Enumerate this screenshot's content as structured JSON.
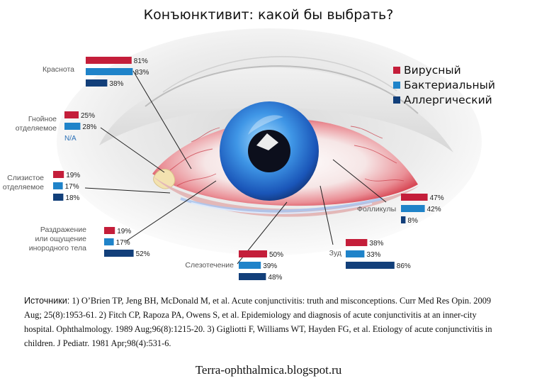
{
  "chart_data": {
    "type": "bar",
    "orientation": "horizontal",
    "title": "Конъюнктивит: какой бы выбрать?",
    "unit": "%",
    "series": [
      {
        "name": "Вирусный",
        "color": "#c41e3a"
      },
      {
        "name": "Бактериальный",
        "color": "#1f83c9"
      },
      {
        "name": "Аллергический",
        "color": "#123f7a"
      }
    ],
    "categories": [
      {
        "label": [
          "Краснота"
        ],
        "values": [
          81,
          83,
          38
        ],
        "display": [
          "81%",
          "83%",
          "38%"
        ]
      },
      {
        "label": [
          "Гнойное",
          "отделяемое"
        ],
        "values": [
          25,
          28,
          null
        ],
        "display": [
          "25%",
          "28%",
          "N/A"
        ]
      },
      {
        "label": [
          "Слизистое",
          "отделяемое"
        ],
        "values": [
          19,
          17,
          18
        ],
        "display": [
          "19%",
          "17%",
          "18%"
        ]
      },
      {
        "label": [
          "Раздражение",
          "или ощущение",
          "инородного тела"
        ],
        "values": [
          19,
          17,
          52
        ],
        "display": [
          "19%",
          "17%",
          "52%"
        ]
      },
      {
        "label": [
          "Слезотечение"
        ],
        "values": [
          50,
          39,
          48
        ],
        "display": [
          "50%",
          "39%",
          "48%"
        ]
      },
      {
        "label": [
          "Зуд"
        ],
        "values": [
          38,
          33,
          86
        ],
        "display": [
          "38%",
          "33%",
          "86%"
        ]
      },
      {
        "label": [
          "Фолликулы"
        ],
        "values": [
          47,
          42,
          8
        ],
        "display": [
          "47%",
          "42%",
          "8%"
        ]
      }
    ]
  },
  "sources": {
    "lead": "Источники:",
    "text": " 1) O’Brien TP, Jeng BH, McDonald M, et al. Acute conjunctivitis: truth and misconceptions. Curr Med Res Opin. 2009 Aug; 25(8):1953-61. 2) Fitch CP, Rapoza PA, Owens S, et al. Epidemiology and diagnosis of acute conjunctivitis at an inner-city hospital. Ophthalmology. 1989 Aug;96(8):1215-20. 3) Gigliotti F, Williams WT, Hayden FG, et al. Etiology of acute conjunctivitis in children. J Pediatr. 1981 Apr;98(4):531-6."
  },
  "website": "Terra-ophthalmica.blogspot.ru"
}
